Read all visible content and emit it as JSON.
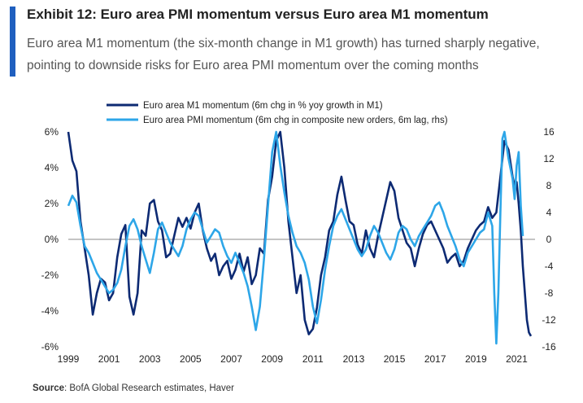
{
  "title": "Exhibit 12: Euro area PMI momentum versus Euro area M1 momentum",
  "subtitle": "Euro area M1 momentum (the six-month change in M1 growth) has turned sharply negative, pointing to downside risks for Euro area PMI momentum over the coming months",
  "source_label": "Source",
  "source_text": ": BofA Global Research estimates, Haver",
  "chart_data": {
    "type": "line",
    "x_ticks": [
      "1999",
      "2001",
      "2003",
      "2005",
      "2007",
      "2009",
      "2011",
      "2013",
      "2015",
      "2017",
      "2019",
      "2021"
    ],
    "xlim": [
      1999,
      2021.9
    ],
    "y_left": {
      "ticks": [
        "6%",
        "4%",
        "2%",
        "0%",
        "-2%",
        "-4%",
        "-6%"
      ],
      "lim": [
        -6,
        6
      ]
    },
    "y_right": {
      "ticks": [
        "16",
        "12",
        "8",
        "4",
        "0",
        "-4",
        "-8",
        "-12",
        "-16"
      ],
      "lim": [
        -16,
        16
      ]
    },
    "grid": false,
    "legend_position": "top",
    "series": [
      {
        "name": "Euro area M1 momentum  (6m chg in % yoy growth  in M1)",
        "axis": "left",
        "color": "#0d2a73",
        "points": [
          [
            1999.0,
            6.0
          ],
          [
            1999.2,
            4.4
          ],
          [
            1999.4,
            3.8
          ],
          [
            1999.6,
            1.0
          ],
          [
            1999.8,
            -0.5
          ],
          [
            2000.0,
            -2.0
          ],
          [
            2000.2,
            -4.2
          ],
          [
            2000.4,
            -3.0
          ],
          [
            2000.6,
            -2.2
          ],
          [
            2000.8,
            -2.4
          ],
          [
            2001.0,
            -3.4
          ],
          [
            2001.2,
            -3.0
          ],
          [
            2001.4,
            -1.0
          ],
          [
            2001.6,
            0.3
          ],
          [
            2001.8,
            0.8
          ],
          [
            2002.0,
            -3.2
          ],
          [
            2002.2,
            -4.2
          ],
          [
            2002.4,
            -3.0
          ],
          [
            2002.6,
            0.5
          ],
          [
            2002.8,
            0.2
          ],
          [
            2003.0,
            2.0
          ],
          [
            2003.2,
            2.2
          ],
          [
            2003.4,
            1.0
          ],
          [
            2003.6,
            0.5
          ],
          [
            2003.8,
            -1.0
          ],
          [
            2004.0,
            -0.8
          ],
          [
            2004.2,
            0.2
          ],
          [
            2004.4,
            1.2
          ],
          [
            2004.6,
            0.7
          ],
          [
            2004.8,
            1.2
          ],
          [
            2005.0,
            0.6
          ],
          [
            2005.2,
            1.5
          ],
          [
            2005.4,
            2.0
          ],
          [
            2005.6,
            0.5
          ],
          [
            2005.8,
            -0.5
          ],
          [
            2006.0,
            -1.2
          ],
          [
            2006.2,
            -0.8
          ],
          [
            2006.4,
            -2.0
          ],
          [
            2006.6,
            -1.5
          ],
          [
            2006.8,
            -1.2
          ],
          [
            2007.0,
            -2.2
          ],
          [
            2007.2,
            -1.7
          ],
          [
            2007.4,
            -0.8
          ],
          [
            2007.6,
            -1.8
          ],
          [
            2007.8,
            -1.0
          ],
          [
            2008.0,
            -2.5
          ],
          [
            2008.2,
            -2.0
          ],
          [
            2008.4,
            -0.5
          ],
          [
            2008.6,
            -0.8
          ],
          [
            2008.8,
            2.2
          ],
          [
            2009.0,
            3.5
          ],
          [
            2009.2,
            5.5
          ],
          [
            2009.4,
            6.0
          ],
          [
            2009.6,
            4.0
          ],
          [
            2009.8,
            1.0
          ],
          [
            2010.0,
            -1.0
          ],
          [
            2010.2,
            -3.0
          ],
          [
            2010.4,
            -2.0
          ],
          [
            2010.6,
            -4.5
          ],
          [
            2010.8,
            -5.3
          ],
          [
            2011.0,
            -5.0
          ],
          [
            2011.2,
            -3.8
          ],
          [
            2011.4,
            -2.0
          ],
          [
            2011.6,
            -1.0
          ],
          [
            2011.8,
            0.5
          ],
          [
            2012.0,
            1.0
          ],
          [
            2012.2,
            2.5
          ],
          [
            2012.4,
            3.5
          ],
          [
            2012.6,
            2.2
          ],
          [
            2012.8,
            1.0
          ],
          [
            2013.0,
            0.8
          ],
          [
            2013.2,
            -0.3
          ],
          [
            2013.4,
            -0.8
          ],
          [
            2013.6,
            0.5
          ],
          [
            2013.8,
            -0.5
          ],
          [
            2014.0,
            -1.0
          ],
          [
            2014.2,
            0.2
          ],
          [
            2014.4,
            1.2
          ],
          [
            2014.6,
            2.2
          ],
          [
            2014.8,
            3.2
          ],
          [
            2015.0,
            2.7
          ],
          [
            2015.2,
            1.2
          ],
          [
            2015.4,
            0.5
          ],
          [
            2015.6,
            -0.2
          ],
          [
            2015.8,
            -0.5
          ],
          [
            2016.0,
            -1.5
          ],
          [
            2016.2,
            -0.5
          ],
          [
            2016.4,
            0.3
          ],
          [
            2016.6,
            0.8
          ],
          [
            2016.8,
            1.0
          ],
          [
            2017.0,
            0.5
          ],
          [
            2017.2,
            0.0
          ],
          [
            2017.4,
            -0.5
          ],
          [
            2017.6,
            -1.3
          ],
          [
            2017.8,
            -1.0
          ],
          [
            2018.0,
            -0.8
          ],
          [
            2018.2,
            -1.5
          ],
          [
            2018.4,
            -1.2
          ],
          [
            2018.6,
            -0.5
          ],
          [
            2018.8,
            0.0
          ],
          [
            2019.0,
            0.5
          ],
          [
            2019.2,
            0.8
          ],
          [
            2019.4,
            1.0
          ],
          [
            2019.6,
            1.8
          ],
          [
            2019.8,
            1.2
          ],
          [
            2020.0,
            1.5
          ],
          [
            2020.2,
            3.5
          ],
          [
            2020.4,
            5.5
          ],
          [
            2020.6,
            5.0
          ],
          [
            2020.8,
            3.5
          ],
          [
            2020.9,
            3.0
          ],
          [
            2021.0,
            3.2
          ],
          [
            2021.1,
            2.0
          ],
          [
            2021.2,
            0.5
          ],
          [
            2021.3,
            -1.5
          ],
          [
            2021.4,
            -3.0
          ],
          [
            2021.5,
            -4.5
          ],
          [
            2021.6,
            -5.2
          ],
          [
            2021.7,
            -5.4
          ]
        ]
      },
      {
        "name": "Euro area PMI momentum  (6m chg in composite  new orders, 6m lag, rhs)",
        "axis": "right",
        "color": "#2da6e8",
        "points": [
          [
            1999.0,
            5.0
          ],
          [
            1999.2,
            6.5
          ],
          [
            1999.4,
            5.5
          ],
          [
            1999.6,
            2.0
          ],
          [
            1999.8,
            -1.0
          ],
          [
            2000.0,
            -2.0
          ],
          [
            2000.2,
            -3.5
          ],
          [
            2000.4,
            -5.0
          ],
          [
            2000.6,
            -6.0
          ],
          [
            2000.8,
            -7.0
          ],
          [
            2001.0,
            -8.0
          ],
          [
            2001.2,
            -7.5
          ],
          [
            2001.4,
            -6.5
          ],
          [
            2001.6,
            -4.5
          ],
          [
            2001.8,
            -1.0
          ],
          [
            2002.0,
            2.0
          ],
          [
            2002.2,
            3.0
          ],
          [
            2002.4,
            1.5
          ],
          [
            2002.6,
            -1.0
          ],
          [
            2002.8,
            -3.0
          ],
          [
            2003.0,
            -5.0
          ],
          [
            2003.2,
            -2.0
          ],
          [
            2003.4,
            1.5
          ],
          [
            2003.6,
            2.5
          ],
          [
            2003.8,
            1.0
          ],
          [
            2004.0,
            -0.5
          ],
          [
            2004.2,
            -1.5
          ],
          [
            2004.4,
            -2.5
          ],
          [
            2004.6,
            -1.0
          ],
          [
            2004.8,
            1.5
          ],
          [
            2005.0,
            3.0
          ],
          [
            2005.2,
            4.0
          ],
          [
            2005.4,
            3.5
          ],
          [
            2005.6,
            1.5
          ],
          [
            2005.8,
            -0.5
          ],
          [
            2006.0,
            0.5
          ],
          [
            2006.2,
            1.5
          ],
          [
            2006.4,
            1.0
          ],
          [
            2006.6,
            -1.0
          ],
          [
            2006.8,
            -2.5
          ],
          [
            2007.0,
            -3.5
          ],
          [
            2007.2,
            -2.0
          ],
          [
            2007.4,
            -3.5
          ],
          [
            2007.6,
            -5.0
          ],
          [
            2007.8,
            -7.0
          ],
          [
            2008.0,
            -10.0
          ],
          [
            2008.2,
            -13.5
          ],
          [
            2008.4,
            -10.0
          ],
          [
            2008.6,
            -3.0
          ],
          [
            2008.8,
            5.0
          ],
          [
            2009.0,
            13.0
          ],
          [
            2009.2,
            16.0
          ],
          [
            2009.4,
            11.0
          ],
          [
            2009.6,
            7.0
          ],
          [
            2009.8,
            3.5
          ],
          [
            2010.0,
            1.0
          ],
          [
            2010.2,
            -1.0
          ],
          [
            2010.4,
            -2.0
          ],
          [
            2010.6,
            -3.5
          ],
          [
            2010.8,
            -6.0
          ],
          [
            2011.0,
            -10.0
          ],
          [
            2011.2,
            -12.5
          ],
          [
            2011.4,
            -9.0
          ],
          [
            2011.6,
            -4.5
          ],
          [
            2011.8,
            -1.0
          ],
          [
            2012.0,
            2.0
          ],
          [
            2012.2,
            3.5
          ],
          [
            2012.4,
            4.5
          ],
          [
            2012.6,
            3.0
          ],
          [
            2012.8,
            1.5
          ],
          [
            2013.0,
            0.0
          ],
          [
            2013.2,
            -1.5
          ],
          [
            2013.4,
            -2.5
          ],
          [
            2013.6,
            -1.5
          ],
          [
            2013.8,
            0.5
          ],
          [
            2014.0,
            2.0
          ],
          [
            2014.2,
            1.0
          ],
          [
            2014.4,
            -0.5
          ],
          [
            2014.6,
            -2.0
          ],
          [
            2014.8,
            -3.0
          ],
          [
            2015.0,
            -1.5
          ],
          [
            2015.2,
            1.0
          ],
          [
            2015.4,
            2.0
          ],
          [
            2015.6,
            1.5
          ],
          [
            2015.8,
            0.0
          ],
          [
            2016.0,
            -1.0
          ],
          [
            2016.2,
            0.5
          ],
          [
            2016.4,
            1.5
          ],
          [
            2016.6,
            2.5
          ],
          [
            2016.8,
            3.5
          ],
          [
            2017.0,
            5.0
          ],
          [
            2017.2,
            5.5
          ],
          [
            2017.4,
            4.0
          ],
          [
            2017.6,
            2.0
          ],
          [
            2017.8,
            0.5
          ],
          [
            2018.0,
            -1.0
          ],
          [
            2018.2,
            -3.0
          ],
          [
            2018.4,
            -4.0
          ],
          [
            2018.6,
            -2.0
          ],
          [
            2018.8,
            -1.0
          ],
          [
            2019.0,
            0.0
          ],
          [
            2019.2,
            1.0
          ],
          [
            2019.4,
            1.5
          ],
          [
            2019.6,
            4.0
          ],
          [
            2019.8,
            2.0
          ],
          [
            2019.9,
            -8.0
          ],
          [
            2020.0,
            -15.5
          ],
          [
            2020.1,
            -8.0
          ],
          [
            2020.2,
            4.0
          ],
          [
            2020.3,
            15.0
          ],
          [
            2020.4,
            16.0
          ],
          [
            2020.6,
            12.0
          ],
          [
            2020.8,
            9.0
          ],
          [
            2020.9,
            6.0
          ],
          [
            2021.0,
            11.0
          ],
          [
            2021.1,
            13.0
          ],
          [
            2021.2,
            5.0
          ],
          [
            2021.3,
            0.5
          ]
        ]
      }
    ]
  }
}
